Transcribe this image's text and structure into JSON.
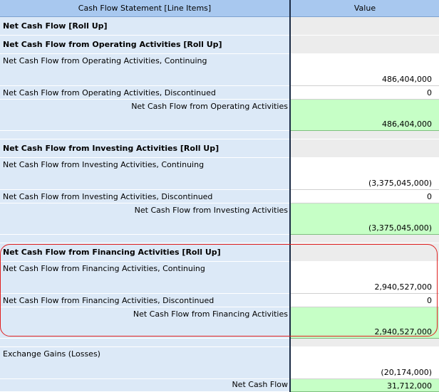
{
  "header": {
    "label_column": "Cash Flow Statement [Line Items]",
    "value_column": "Value"
  },
  "rows": [
    {
      "label": "Net Cash Flow [Roll Up]",
      "value": ""
    },
    {
      "label": "Net Cash Flow from Operating Activities [Roll Up]",
      "value": ""
    },
    {
      "label": "Net Cash Flow from Operating Activities, Continuing",
      "value": "486,404,000"
    },
    {
      "label": "Net Cash Flow from Operating Activities, Discontinued",
      "value": "0"
    },
    {
      "label": "Net Cash Flow from Operating Activities",
      "value": "486,404,000"
    },
    {
      "label": "",
      "value": ""
    },
    {
      "label": "Net Cash Flow from Investing Activities [Roll Up]",
      "value": ""
    },
    {
      "label": "Net Cash Flow from Investing Activities, Continuing",
      "value": "(3,375,045,000)"
    },
    {
      "label": "Net Cash Flow from Investing Activities, Discontinued",
      "value": "0"
    },
    {
      "label": "Net Cash Flow from Investing Activities",
      "value": "(3,375,045,000)"
    },
    {
      "label": "",
      "value": ""
    },
    {
      "label": "Net Cash Flow from Financing Activities [Roll Up]",
      "value": ""
    },
    {
      "label": "Net Cash Flow from Financing Activities, Continuing",
      "value": "2,940,527,000"
    },
    {
      "label": "Net Cash Flow from Financing Activities, Discontinued",
      "value": "0"
    },
    {
      "label": "Net Cash Flow from Financing Activities",
      "value": "2,940,527,000"
    },
    {
      "label": "",
      "value": ""
    },
    {
      "label": "Exchange Gains (Losses)",
      "value": "(20,174,000)"
    },
    {
      "label": "Net Cash Flow",
      "value": "31,712,000"
    }
  ],
  "colors": {
    "label_bg": "#dce9f7",
    "header_bg": "#a8c8ef",
    "rollup_value_bg": "#ececec",
    "total_value_bg": "#c6ffc6",
    "highlight_border": "#e02020"
  }
}
